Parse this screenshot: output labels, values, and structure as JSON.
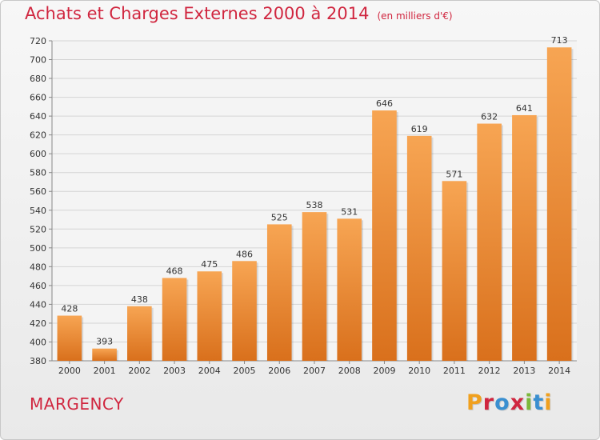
{
  "title": "Achats et Charges Externes 2000 à 2014",
  "subtitle": "(en milliers d'€)",
  "place": "MARGENCY",
  "logo": {
    "text": "Proxiti",
    "letter_colors": [
      "#f0a01e",
      "#d0263f",
      "#3a8fd0",
      "#d0263f",
      "#7cb83a",
      "#3a8fd0",
      "#f0a01e"
    ]
  },
  "colors": {
    "title": "#d0263f",
    "bar_light": "#f7a553",
    "bar_dark": "#d9701c",
    "grid": "#d4d4d4"
  },
  "chart_data": {
    "type": "bar",
    "title": "Achats et Charges Externes 2000 à 2014",
    "subtitle": "(en milliers d'€)",
    "categories": [
      "2000",
      "2001",
      "2002",
      "2003",
      "2004",
      "2005",
      "2006",
      "2007",
      "2008",
      "2009",
      "2010",
      "2011",
      "2012",
      "2013",
      "2014"
    ],
    "values": [
      428,
      393,
      438,
      468,
      475,
      486,
      525,
      538,
      531,
      646,
      619,
      571,
      632,
      641,
      713
    ],
    "ylim": [
      380,
      720
    ],
    "yticks": [
      380,
      400,
      420,
      440,
      460,
      480,
      500,
      520,
      540,
      560,
      580,
      600,
      620,
      640,
      660,
      680,
      700,
      720
    ],
    "grid": true,
    "legend": "none"
  }
}
